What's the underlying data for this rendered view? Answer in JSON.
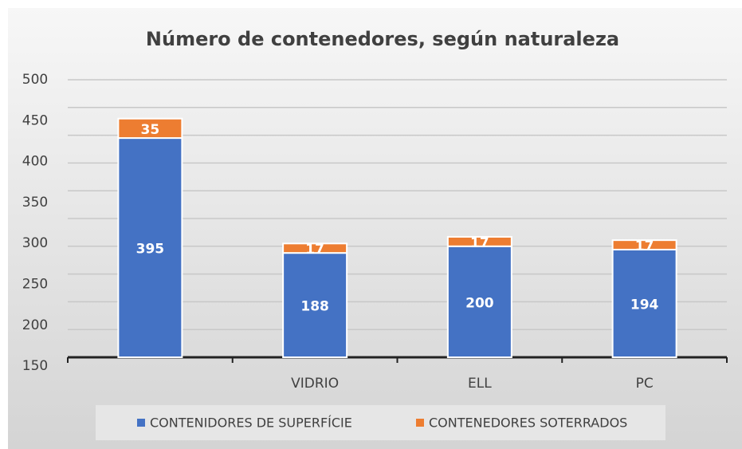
{
  "chart_data": {
    "type": "stacked_bar",
    "title": "Número de contenedores, según naturaleza",
    "categories": [
      null,
      "VIDRIO",
      "ELL",
      "PC"
    ],
    "series": [
      {
        "name": "CONTENIDORES DE SUPERFÍCIE",
        "color": "#4472c4",
        "values": [
          395,
          188,
          200,
          194
        ]
      },
      {
        "name": "CONTENEDORES SOTERRADOS",
        "color": "#ed7d31",
        "values": [
          35,
          17,
          17,
          17
        ]
      }
    ],
    "ylim": [
      0,
      500
    ],
    "yticks": [
      0,
      50,
      100,
      150,
      200,
      250,
      300,
      350,
      400,
      450,
      500
    ],
    "y_axis_labels": [
      500,
      450,
      400,
      350,
      300,
      250,
      200,
      150
    ],
    "grid": true,
    "legend": "bottom"
  }
}
